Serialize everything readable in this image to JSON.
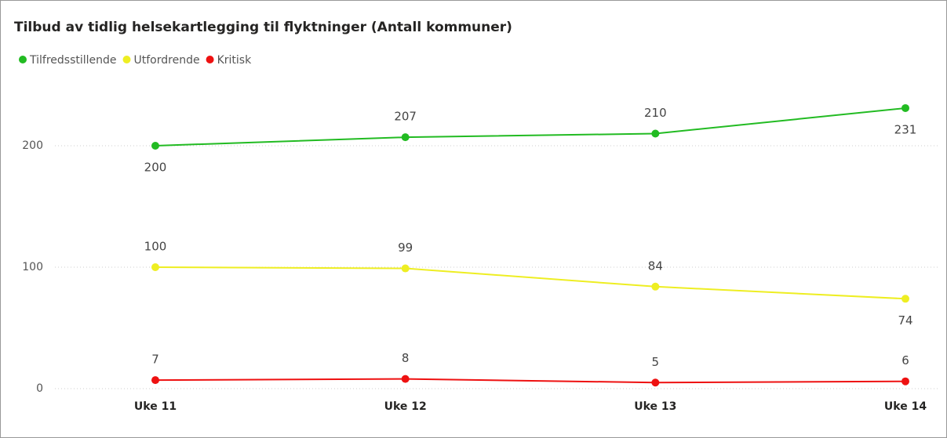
{
  "chart_data": {
    "type": "line",
    "title": "Tilbud av tidlig helsekartlegging til flyktninger (Antall kommuner)",
    "categories": [
      "Uke 11",
      "Uke 12",
      "Uke 13",
      "Uke 14"
    ],
    "series": [
      {
        "name": "Tilfredsstillende",
        "color": "#22bb22",
        "values": [
          200,
          207,
          210,
          231
        ]
      },
      {
        "name": "Utfordrende",
        "color": "#eeee22",
        "values": [
          100,
          99,
          84,
          74
        ]
      },
      {
        "name": "Kritisk",
        "color": "#ee1111",
        "values": [
          7,
          8,
          5,
          6
        ]
      }
    ],
    "ylim": [
      0,
      250
    ],
    "yticks": [
      0,
      100,
      200
    ],
    "grid": true,
    "legend": "top-left"
  }
}
